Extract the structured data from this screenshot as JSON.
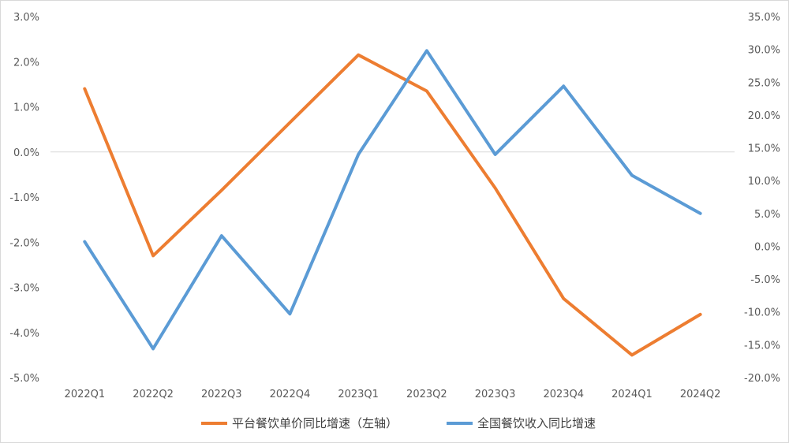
{
  "chart_data": {
    "type": "line",
    "categories": [
      "2022Q1",
      "2022Q2",
      "2022Q3",
      "2022Q4",
      "2023Q1",
      "2023Q2",
      "2023Q3",
      "2023Q4",
      "2024Q1",
      "2024Q2"
    ],
    "series": [
      {
        "name": "平台餐饮单价同比增速（左轴）",
        "axis": "left",
        "color": "#ED7D31",
        "values": [
          1.4,
          -2.3,
          -0.85,
          0.65,
          2.15,
          1.35,
          -0.8,
          -3.25,
          -4.5,
          -3.6
        ]
      },
      {
        "name": "全国餐饮收入同比增速",
        "axis": "right",
        "color": "#5B9BD5",
        "values": [
          0.7,
          -15.6,
          1.6,
          -10.3,
          14.0,
          29.8,
          14.0,
          24.4,
          10.8,
          5.0
        ]
      }
    ],
    "y_left": {
      "min": -5,
      "max": 3,
      "step": 1,
      "tick_labels": [
        "-5.0%",
        "-4.0%",
        "-3.0%",
        "-2.0%",
        "-1.0%",
        "0.0%",
        "1.0%",
        "2.0%",
        "3.0%"
      ]
    },
    "y_right": {
      "min": -20,
      "max": 35,
      "step": 5,
      "tick_labels": [
        "-20.0%",
        "-15.0%",
        "-10.0%",
        "-5.0%",
        "0.0%",
        "5.0%",
        "10.0%",
        "15.0%",
        "20.0%",
        "25.0%",
        "30.0%",
        "35.0%"
      ]
    },
    "gridlines": false,
    "zero_line": true,
    "legend_position": "bottom"
  }
}
